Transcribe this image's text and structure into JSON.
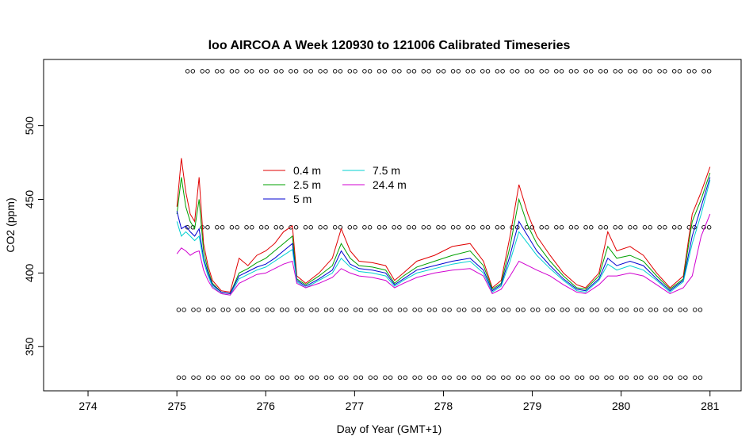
{
  "chart_data": {
    "type": "line",
    "title": "loo AIRCOA A  Week 120930 to 121006  Calibrated Timeseries",
    "xlabel": "Day of Year (GMT+1)",
    "ylabel": "CO2 (ppm)",
    "xlim": [
      273.5,
      281.35
    ],
    "ylim": [
      320,
      545
    ],
    "xticks": [
      274,
      275,
      276,
      277,
      278,
      279,
      280,
      281
    ],
    "yticks": [
      350,
      400,
      450,
      500
    ],
    "grid": false,
    "legend_position": "top-center",
    "legend": [
      "0.4 m",
      "2.5 m",
      "5 m",
      "7.5 m",
      "24.4 m"
    ],
    "series": [
      {
        "name": "0.4 m",
        "color": "#e00000",
        "x": [
          275.0,
          275.05,
          275.1,
          275.15,
          275.2,
          275.25,
          275.3,
          275.35,
          275.4,
          275.5,
          275.6,
          275.7,
          275.8,
          275.9,
          276.0,
          276.1,
          276.2,
          276.3,
          276.35,
          276.45,
          276.6,
          276.75,
          276.85,
          276.95,
          277.05,
          277.2,
          277.35,
          277.45,
          277.55,
          277.7,
          277.9,
          278.1,
          278.3,
          278.45,
          278.55,
          278.65,
          278.75,
          278.85,
          278.95,
          279.05,
          279.2,
          279.35,
          279.5,
          279.6,
          279.75,
          279.85,
          279.95,
          280.1,
          280.25,
          280.4,
          280.55,
          280.7,
          280.8,
          280.9,
          281.0
        ],
        "y": [
          445,
          478,
          455,
          440,
          435,
          465,
          420,
          405,
          395,
          388,
          387,
          410,
          405,
          412,
          415,
          420,
          428,
          432,
          398,
          393,
          400,
          410,
          430,
          415,
          408,
          407,
          405,
          395,
          400,
          408,
          412,
          418,
          420,
          408,
          390,
          395,
          425,
          460,
          440,
          425,
          412,
          400,
          392,
          390,
          400,
          428,
          415,
          418,
          412,
          400,
          390,
          398,
          440,
          455,
          472
        ]
      },
      {
        "name": "2.5 m",
        "color": "#00a000",
        "x": [
          275.0,
          275.05,
          275.1,
          275.15,
          275.2,
          275.25,
          275.3,
          275.35,
          275.4,
          275.5,
          275.6,
          275.7,
          275.8,
          275.9,
          276.0,
          276.1,
          276.2,
          276.3,
          276.35,
          276.45,
          276.6,
          276.75,
          276.85,
          276.95,
          277.05,
          277.2,
          277.35,
          277.45,
          277.55,
          277.7,
          277.9,
          278.1,
          278.3,
          278.45,
          278.55,
          278.65,
          278.75,
          278.85,
          278.95,
          279.05,
          279.2,
          279.35,
          279.5,
          279.6,
          279.75,
          279.85,
          279.95,
          280.1,
          280.25,
          280.4,
          280.55,
          280.7,
          280.8,
          280.9,
          281.0
        ],
        "y": [
          440,
          465,
          445,
          435,
          430,
          450,
          415,
          402,
          393,
          387,
          386,
          400,
          403,
          407,
          410,
          415,
          420,
          425,
          396,
          392,
          398,
          405,
          420,
          410,
          405,
          404,
          402,
          393,
          398,
          404,
          408,
          412,
          415,
          405,
          389,
          393,
          418,
          450,
          432,
          420,
          408,
          398,
          390,
          389,
          398,
          418,
          410,
          412,
          408,
          398,
          389,
          396,
          435,
          450,
          468
        ]
      },
      {
        "name": "5 m",
        "color": "#0000d0",
        "x": [
          275.0,
          275.05,
          275.1,
          275.15,
          275.2,
          275.25,
          275.3,
          275.35,
          275.4,
          275.5,
          275.6,
          275.7,
          275.8,
          275.9,
          276.0,
          276.1,
          276.2,
          276.3,
          276.35,
          276.45,
          276.6,
          276.75,
          276.85,
          276.95,
          277.05,
          277.2,
          277.35,
          277.45,
          277.55,
          277.7,
          277.9,
          278.1,
          278.3,
          278.45,
          278.55,
          278.65,
          278.75,
          278.85,
          278.95,
          279.05,
          279.2,
          279.35,
          279.5,
          279.6,
          279.75,
          279.85,
          279.95,
          280.1,
          280.25,
          280.4,
          280.55,
          280.7,
          280.8,
          280.9,
          281.0
        ],
        "y": [
          442,
          430,
          432,
          428,
          425,
          430,
          410,
          400,
          392,
          387,
          386,
          398,
          401,
          404,
          406,
          410,
          415,
          420,
          395,
          391,
          396,
          402,
          415,
          406,
          403,
          402,
          400,
          392,
          396,
          402,
          405,
          408,
          410,
          402,
          388,
          392,
          412,
          435,
          425,
          415,
          405,
          396,
          389,
          388,
          396,
          410,
          405,
          408,
          405,
          396,
          388,
          395,
          425,
          445,
          465
        ]
      },
      {
        "name": "7.5 m",
        "color": "#00d0d0",
        "x": [
          275.0,
          275.05,
          275.1,
          275.15,
          275.2,
          275.25,
          275.3,
          275.35,
          275.4,
          275.5,
          275.6,
          275.7,
          275.8,
          275.9,
          276.0,
          276.1,
          276.2,
          276.3,
          276.35,
          276.45,
          276.6,
          276.75,
          276.85,
          276.95,
          277.05,
          277.2,
          277.35,
          277.45,
          277.55,
          277.7,
          277.9,
          278.1,
          278.3,
          278.45,
          278.55,
          278.65,
          278.75,
          278.85,
          278.95,
          279.05,
          279.2,
          279.35,
          279.5,
          279.6,
          279.75,
          279.85,
          279.95,
          280.1,
          280.25,
          280.4,
          280.55,
          280.7,
          280.8,
          280.9,
          281.0
        ],
        "y": [
          435,
          425,
          428,
          425,
          422,
          425,
          408,
          398,
          391,
          386,
          385,
          396,
          399,
          402,
          404,
          408,
          412,
          416,
          394,
          390,
          395,
          400,
          410,
          404,
          401,
          400,
          398,
          391,
          395,
          400,
          403,
          406,
          408,
          400,
          387,
          391,
          408,
          428,
          420,
          412,
          403,
          395,
          388,
          387,
          395,
          406,
          402,
          405,
          402,
          395,
          387,
          394,
          420,
          440,
          463
        ]
      },
      {
        "name": "24.4 m",
        "color": "#d000d0",
        "x": [
          275.0,
          275.05,
          275.1,
          275.15,
          275.2,
          275.25,
          275.3,
          275.35,
          275.4,
          275.5,
          275.6,
          275.7,
          275.8,
          275.9,
          276.0,
          276.1,
          276.2,
          276.3,
          276.35,
          276.45,
          276.6,
          276.75,
          276.85,
          276.95,
          277.05,
          277.2,
          277.35,
          277.45,
          277.55,
          277.7,
          277.9,
          278.1,
          278.3,
          278.45,
          278.55,
          278.65,
          278.75,
          278.85,
          278.95,
          279.05,
          279.2,
          279.35,
          279.5,
          279.6,
          279.75,
          279.85,
          279.95,
          280.1,
          280.25,
          280.4,
          280.55,
          280.7,
          280.8,
          280.9,
          281.0
        ],
        "y": [
          413,
          417,
          415,
          412,
          414,
          415,
          402,
          395,
          390,
          386,
          385,
          393,
          396,
          399,
          400,
          403,
          406,
          408,
          393,
          390,
          393,
          397,
          403,
          400,
          398,
          397,
          395,
          390,
          393,
          397,
          400,
          402,
          403,
          398,
          386,
          389,
          398,
          408,
          405,
          402,
          398,
          392,
          387,
          386,
          392,
          398,
          398,
          400,
          398,
          392,
          386,
          390,
          398,
          425,
          440
        ]
      }
    ],
    "marker_rows": [
      {
        "y": 537,
        "x_start": 275.15,
        "x_end": 281.0,
        "step": 0.166
      },
      {
        "y": 431,
        "x_start": 275.15,
        "x_end": 281.0,
        "step": 0.166
      },
      {
        "y": 375,
        "x_start": 275.05,
        "x_end": 281.0,
        "step": 0.166
      },
      {
        "y": 329,
        "x_start": 275.05,
        "x_end": 281.0,
        "step": 0.166
      }
    ]
  }
}
